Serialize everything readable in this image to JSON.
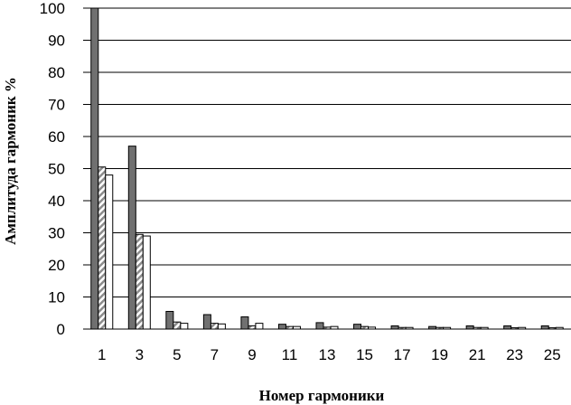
{
  "chart_data": {
    "type": "bar",
    "xlabel": "Номер гармоники",
    "ylabel": "Амплитуда гармоник %",
    "ylim": [
      0,
      100
    ],
    "yticks": [
      0,
      10,
      20,
      30,
      40,
      50,
      60,
      70,
      80,
      90,
      100
    ],
    "grid": true,
    "legend": "none",
    "categories": [
      "1",
      "3",
      "5",
      "7",
      "9",
      "11",
      "13",
      "15",
      "17",
      "19",
      "21",
      "23",
      "25"
    ],
    "series": [
      {
        "color": "#707070",
        "pattern": "solid",
        "values": [
          100,
          57,
          5.5,
          4.5,
          3.8,
          1.5,
          2.0,
          1.5,
          1.0,
          0.8,
          1.0,
          1.0,
          1.0
        ]
      },
      {
        "color": "#a0a0a0",
        "pattern": "hatched",
        "values": [
          50.5,
          29.5,
          2.2,
          1.8,
          1.0,
          0.8,
          0.6,
          0.8,
          0.5,
          0.5,
          0.5,
          0.4,
          0.4
        ]
      },
      {
        "color": "#ffffff",
        "pattern": "hollow",
        "values": [
          48,
          29,
          1.8,
          1.6,
          1.8,
          0.8,
          0.8,
          0.6,
          0.5,
          0.5,
          0.5,
          0.5,
          0.5
        ]
      }
    ]
  }
}
